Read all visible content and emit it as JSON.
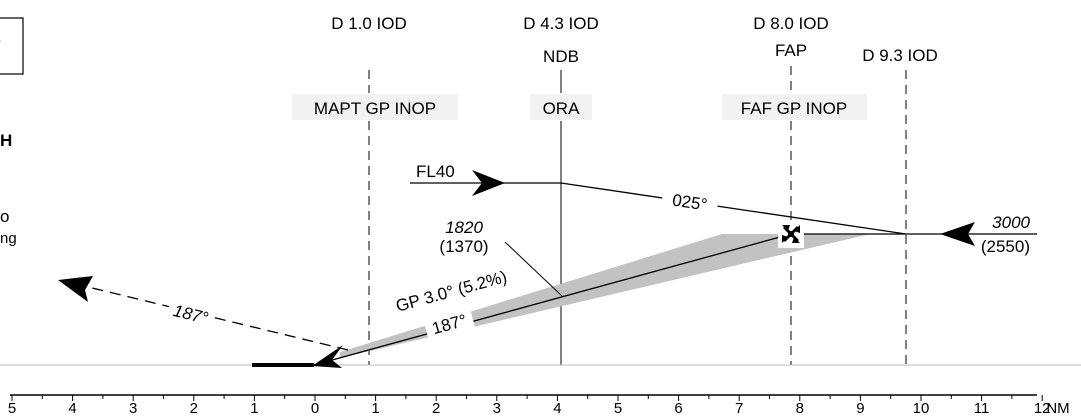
{
  "fixes": [
    {
      "id": "d1",
      "dist": "D 1.0 IOD",
      "name": "",
      "label": "MAPT GP INOP"
    },
    {
      "id": "d43",
      "dist": "D 4.3 IOD",
      "name": "NDB",
      "label": "ORA"
    },
    {
      "id": "d80",
      "dist": "D 8.0 IOD",
      "name": "FAP",
      "label": "FAF GP INOP"
    },
    {
      "id": "d93",
      "dist": "D 9.3 IOD",
      "name": "",
      "label": ""
    }
  ],
  "left_edge": {
    "partial_bold": "H",
    "partial_o": "o",
    "partial_text": "ng"
  },
  "procedure": {
    "fl": "FL40",
    "outbound_course": "025°",
    "initial_alt": "3000",
    "initial_alt_height": "(2550)",
    "step_alt": "1820",
    "step_alt_height": "(1370)",
    "glidepath": "GP 3.0° (5.2%)",
    "final_course": "187°",
    "missed_course": "187°"
  },
  "scale": {
    "ticks": [
      "5",
      "4",
      "3",
      "2",
      "1",
      "0",
      "1",
      "2",
      "3",
      "4",
      "5",
      "6",
      "7",
      "8",
      "9",
      "10",
      "11",
      "12"
    ],
    "unit": "NM"
  }
}
